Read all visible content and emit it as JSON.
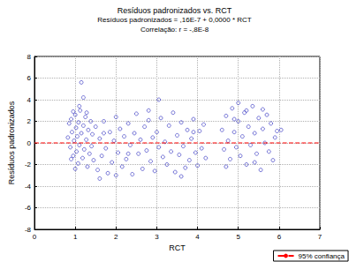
{
  "chart_data": {
    "type": "scatter",
    "title": "Resíduos padronizados vs. RCT",
    "subtitle": "Resíduos padronizados = ,16E-7 + 0,0000 * RCT",
    "annotations": [
      "Correlação: r = -,8E-8"
    ],
    "x_label": "RCT",
    "y_label": "Resíduos padronizados",
    "xlim": [
      0,
      7
    ],
    "xticks": [
      0,
      1,
      2,
      3,
      4,
      5,
      6,
      7
    ],
    "ylim": [
      -8,
      8
    ],
    "yticks": [
      -8,
      -6,
      -4,
      -2,
      0,
      2,
      4,
      6,
      8
    ],
    "grid": true,
    "legend": "bottom-right",
    "series": [
      {
        "type": "scatter",
        "color": "#2b2bbf",
        "marker": "open_circle",
        "x": [
          0.82,
          0.85,
          0.88,
          0.9,
          0.92,
          0.95,
          0.97,
          1.0,
          1.02,
          1.03,
          1.05,
          1.07,
          1.08,
          1.1,
          1.12,
          1.15,
          1.15,
          1.18,
          1.2,
          1.2,
          1.22,
          1.25,
          1.27,
          1.3,
          1.32,
          1.35,
          1.38,
          1.4,
          1.42,
          1.45,
          0.9,
          1.0,
          1.1,
          0.95,
          1.28,
          1.5,
          1.55,
          1.6,
          1.65,
          1.7,
          1.75,
          1.8,
          1.85,
          1.9,
          1.95,
          2.0,
          2.05,
          2.1,
          2.15,
          2.2,
          2.25,
          2.3,
          2.35,
          2.4,
          2.45,
          2.5,
          2.55,
          2.6,
          2.65,
          2.7,
          2.75,
          2.8,
          2.85,
          2.9,
          2.95,
          3.0,
          3.05,
          3.05,
          3.1,
          3.15,
          3.2,
          3.25,
          3.3,
          3.35,
          3.4,
          3.45,
          3.5,
          3.55,
          3.6,
          3.65,
          3.7,
          3.75,
          3.8,
          3.85,
          3.9,
          3.95,
          4.0,
          4.05,
          4.1,
          4.15,
          4.2,
          1.6,
          2.0,
          2.8,
          3.6,
          2.3,
          1.7,
          3.9,
          4.6,
          4.65,
          4.7,
          4.75,
          4.8,
          4.85,
          4.9,
          4.95,
          5.0,
          5.0,
          5.05,
          5.1,
          5.15,
          5.2,
          5.25,
          5.3,
          5.35,
          5.4,
          5.45,
          5.5,
          5.55,
          5.6,
          5.65,
          5.7,
          5.75,
          5.8,
          5.85,
          5.9,
          5.95,
          6.05,
          4.7,
          5.2,
          5.4,
          4.9,
          5.6
        ],
        "values": [
          0.5,
          1.8,
          -0.4,
          2.2,
          1.0,
          -1.2,
          0.2,
          2.6,
          1.4,
          -0.8,
          0.6,
          -1.9,
          1.9,
          -0.2,
          3.0,
          5.6,
          0.9,
          -1.4,
          4.2,
          1.6,
          -0.6,
          2.4,
          0.3,
          -2.2,
          1.2,
          -1.0,
          2.0,
          -0.3,
          0.8,
          -1.6,
          -1.5,
          -2.4,
          3.4,
          2.9,
          2.8,
          1.5,
          -2.5,
          0.4,
          -1.2,
          2.0,
          -0.5,
          -2.8,
          1.0,
          -1.8,
          0.2,
          2.4,
          -0.9,
          1.3,
          -2.2,
          0.6,
          -1.5,
          1.8,
          -0.2,
          -2.9,
          0.9,
          2.7,
          -1.0,
          0.3,
          -2.4,
          1.5,
          -0.7,
          2.1,
          -1.7,
          0.5,
          -2.6,
          1.0,
          4.0,
          -0.4,
          2.3,
          -1.3,
          0.1,
          -2.0,
          1.6,
          -0.8,
          2.8,
          -2.7,
          0.7,
          -1.1,
          1.9,
          -0.3,
          -2.3,
          1.2,
          -1.6,
          0.4,
          2.2,
          -0.9,
          -2.1,
          1.1,
          -0.5,
          1.7,
          -1.4,
          -3.3,
          -3.0,
          3.0,
          -3.1,
          -1.0,
          0.9,
          1.0,
          1.2,
          -0.6,
          2.5,
          0.2,
          -1.5,
          3.2,
          1.0,
          -0.4,
          3.7,
          2.0,
          -1.2,
          0.6,
          2.8,
          -2.0,
          1.5,
          -0.2,
          3.4,
          0.9,
          -1.0,
          2.3,
          -2.5,
          1.3,
          0.0,
          2.6,
          -0.8,
          1.8,
          -1.6,
          0.5,
          1.1,
          1.2,
          -2.2,
          3.0,
          -1.8,
          2.2,
          3.1
        ]
      },
      {
        "type": "line",
        "name": "95% confiança",
        "color": "#ff0000",
        "line_style": "dashed",
        "x": [
          0,
          7
        ],
        "values": [
          0,
          0
        ]
      }
    ]
  }
}
